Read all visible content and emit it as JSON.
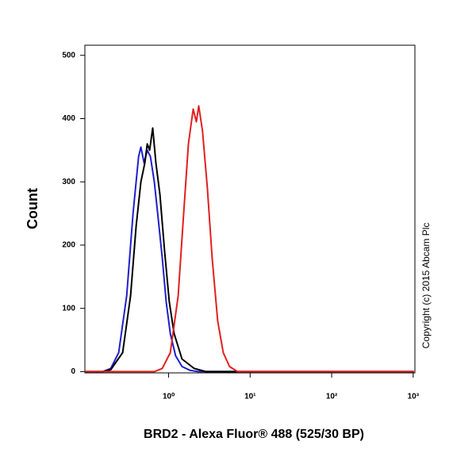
{
  "chart_data": {
    "type": "line",
    "xlabel": "BRD2 - Alexa Fluor® 488 (525/30 BP)",
    "ylabel": "Count",
    "annotation": "Copyright (c) 2015 Abcam Plc",
    "xscale": "log",
    "xlim": [
      0.094,
      1050
    ],
    "ylim": [
      -2,
      516
    ],
    "xticks": [
      {
        "value": 1,
        "label": "10⁰"
      },
      {
        "value": 10,
        "label": "10¹"
      },
      {
        "value": 100,
        "label": "10²"
      },
      {
        "value": 1000,
        "label": "10³"
      }
    ],
    "yticks": [
      0,
      100,
      200,
      300,
      400,
      500
    ],
    "series": [
      {
        "color": "#1f1fcc",
        "x": [
          0.094,
          0.156,
          0.195,
          0.244,
          0.306,
          0.366,
          0.428,
          0.457,
          0.5,
          0.547,
          0.598,
          0.668,
          0.748,
          0.836,
          0.935,
          1.05,
          1.22,
          1.46,
          1.83,
          2.29,
          1020
        ],
        "values": [
          0,
          0,
          5,
          30,
          120,
          250,
          340,
          355,
          330,
          350,
          340,
          300,
          240,
          180,
          110,
          60,
          25,
          8,
          2,
          0,
          0
        ]
      },
      {
        "color": "#000000",
        "x": [
          0.094,
          0.156,
          0.195,
          0.273,
          0.342,
          0.4,
          0.457,
          0.511,
          0.547,
          0.585,
          0.639,
          0.699,
          0.782,
          0.894,
          1.02,
          1.17,
          1.46,
          2.05,
          2.86,
          1020
        ],
        "values": [
          0,
          0,
          3,
          30,
          120,
          230,
          300,
          330,
          360,
          350,
          385,
          330,
          280,
          190,
          110,
          60,
          20,
          5,
          0,
          0
        ]
      },
      {
        "color": "#e02020",
        "x": [
          0.094,
          0.668,
          0.836,
          1.05,
          1.31,
          1.53,
          1.75,
          2.0,
          2.19,
          2.34,
          2.61,
          2.99,
          3.42,
          4.0,
          4.68,
          5.59,
          7.0,
          1020
        ],
        "values": [
          0,
          0,
          5,
          30,
          120,
          250,
          360,
          415,
          395,
          420,
          380,
          290,
          180,
          80,
          30,
          8,
          0,
          0
        ]
      }
    ]
  }
}
